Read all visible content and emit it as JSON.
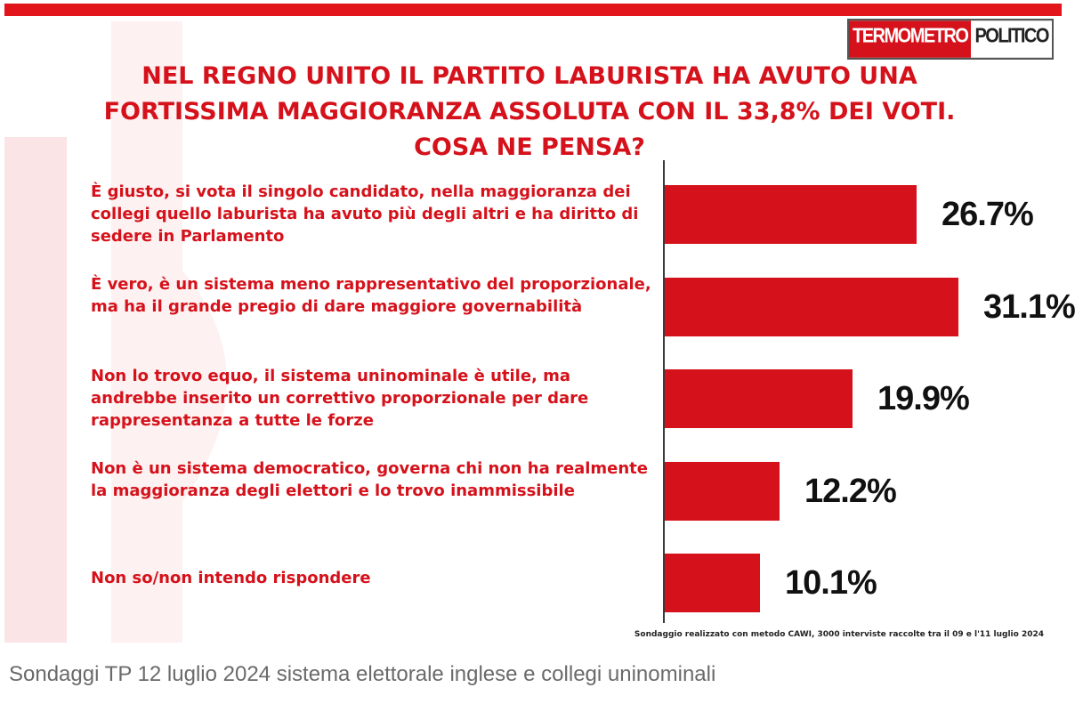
{
  "logo": {
    "part1": "TERMOMETRO",
    "part2": "POLITICO"
  },
  "colors": {
    "accent": "#d5121b",
    "topbar": "#e2141c",
    "value_text": "#111111"
  },
  "chart_data": {
    "type": "bar",
    "orientation": "horizontal",
    "title": "NEL REGNO UNITO IL PARTITO LABURISTA HA AVUTO UNA\nFORTISSIMA MAGGIORANZA ASSOLUTA CON IL 33,8% DEI VOTI.\nCOSA NE PENSA?",
    "categories": [
      "È giusto, si vota il singolo candidato, nella maggioranza dei collegi quello laburista ha avuto più degli altri e ha diritto di sedere in Parlamento",
      "È vero, è un sistema meno rappresentativo del proporzionale, ma ha il grande pregio di dare maggiore governabilità",
      "Non lo trovo equo, il sistema uninominale è utile, ma andrebbe inserito un correttivo proporzionale per dare rappresentanza a tutte le forze",
      "Non è un sistema democratico, governa chi non ha realmente la maggioranza degli elettori e lo trovo inammissibile",
      "Non so/non intendo rispondere"
    ],
    "values": [
      26.7,
      31.1,
      19.9,
      12.2,
      10.1
    ],
    "value_labels": [
      "26.7%",
      "31.1%",
      "19.9%",
      "12.2%",
      "10.1%"
    ],
    "unit": "%",
    "xlim": [
      0,
      33
    ],
    "grid": false,
    "legend": "none"
  },
  "footnote": "Sondaggio realizzato con metodo CAWI, 3000 interviste raccolte tra il 09 e l'11 luglio 2024",
  "caption": "Sondaggi TP 12 luglio 2024 sistema elettorale inglese e collegi uninominali"
}
